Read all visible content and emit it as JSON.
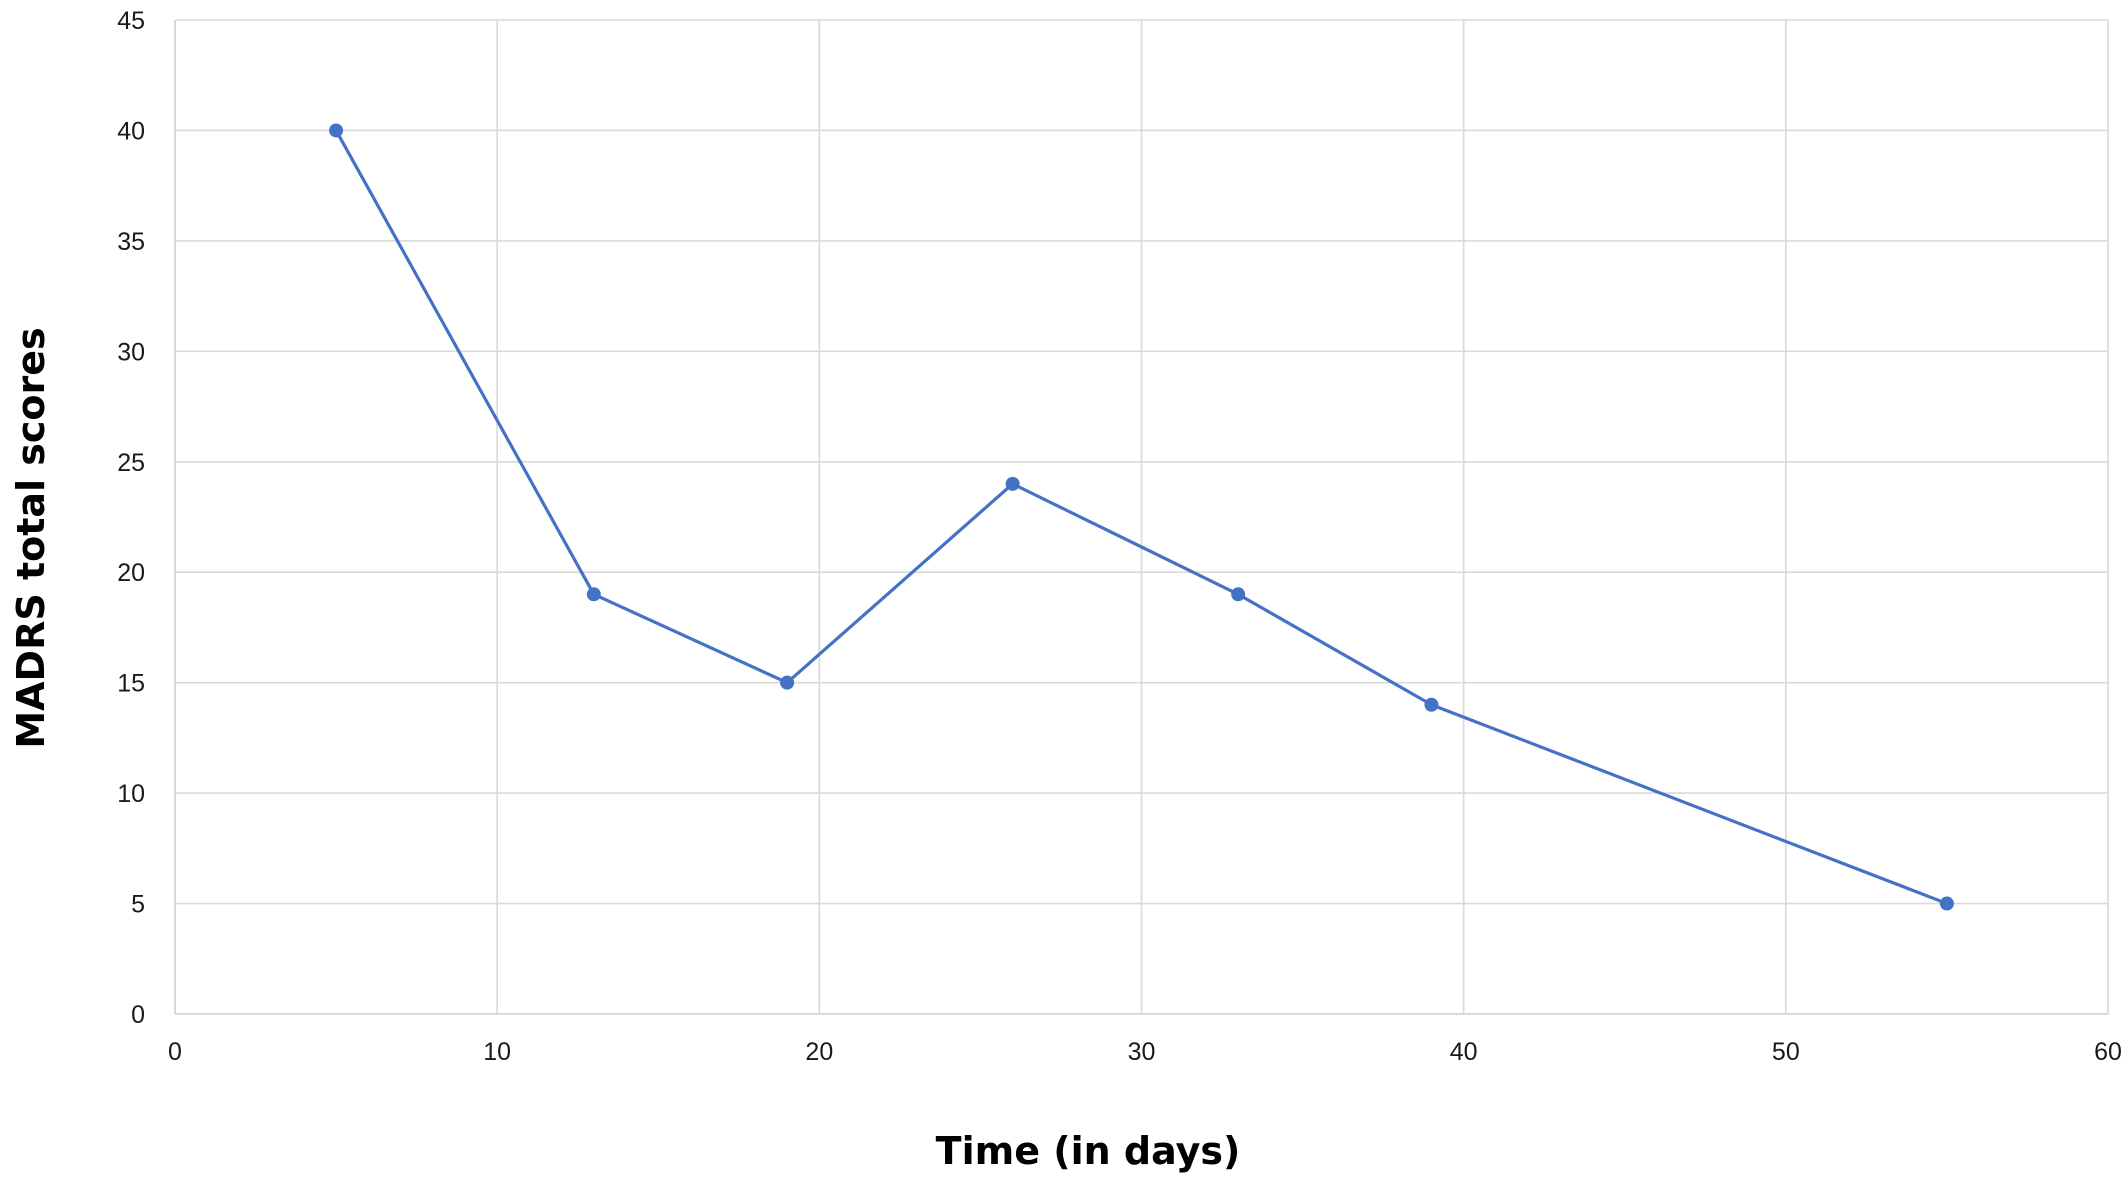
{
  "chart_data": {
    "type": "line",
    "title": "",
    "xlabel": "Time (in days)",
    "ylabel": "MADRS total scores",
    "xlim": [
      0,
      60
    ],
    "ylim": [
      0,
      45
    ],
    "x_ticks": [
      0,
      10,
      20,
      30,
      40,
      50,
      60
    ],
    "y_ticks": [
      0,
      5,
      10,
      15,
      20,
      25,
      30,
      35,
      40,
      45
    ],
    "grid": true,
    "legend": "none",
    "series": [
      {
        "color": "#4472c4",
        "marker": "circle",
        "points": [
          {
            "x": 5,
            "y": 40
          },
          {
            "x": 13,
            "y": 19
          },
          {
            "x": 19,
            "y": 15
          },
          {
            "x": 26,
            "y": 24
          },
          {
            "x": 33,
            "y": 19
          },
          {
            "x": 39,
            "y": 14
          },
          {
            "x": 55,
            "y": 5
          }
        ]
      }
    ]
  }
}
